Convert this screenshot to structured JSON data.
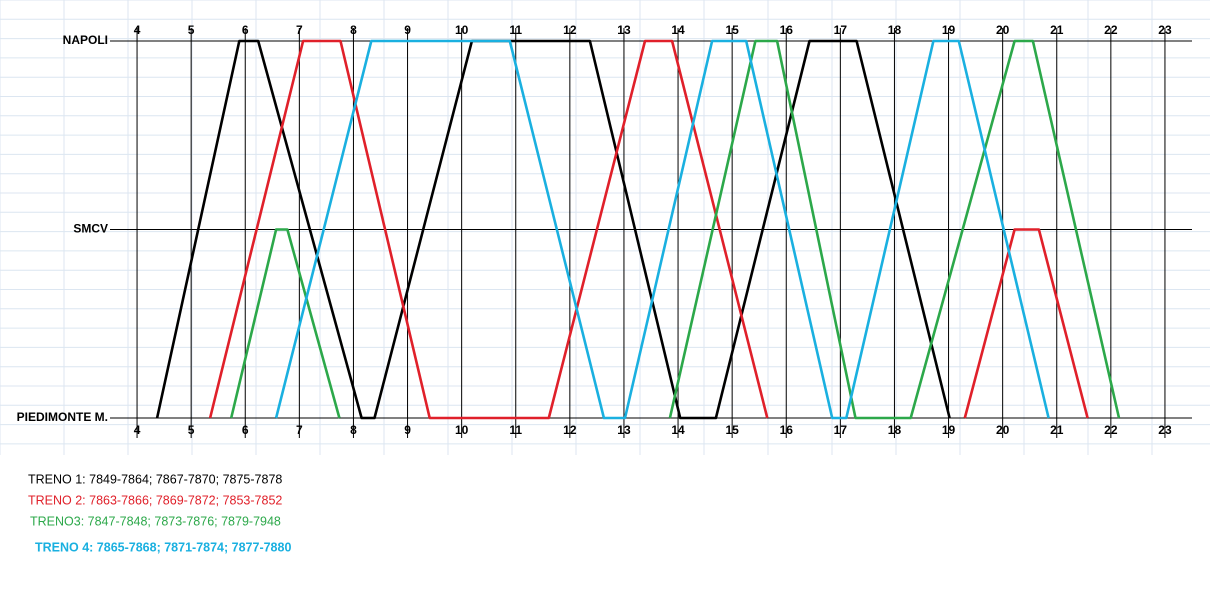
{
  "chart_data": {
    "type": "line",
    "y_categories": [
      "NAPOLI",
      "SMCV",
      "PIEDIMONTE M."
    ],
    "xlim": [
      3.5,
      23.5
    ],
    "xticks": [
      4,
      5,
      6,
      7,
      8,
      9,
      10,
      11,
      12,
      13,
      14,
      15,
      16,
      17,
      18,
      19,
      20,
      21,
      22,
      23
    ],
    "grid": true,
    "series": [
      {
        "name": "TRENO 1: 7849-7864; 7867-7870; 7875-7878",
        "color": "#000000",
        "x": [
          4.37,
          5.89,
          6.24,
          8.15,
          8.39,
          10.19,
          12.37,
          14.04,
          14.7,
          16.43,
          17.3,
          19.02
        ],
        "values": [
          "PIEDIMONTE M.",
          "NAPOLI",
          "NAPOLI",
          "PIEDIMONTE M.",
          "PIEDIMONTE M.",
          "NAPOLI",
          "NAPOLI",
          "PIEDIMONTE M.",
          "PIEDIMONTE M.",
          "NAPOLI",
          "NAPOLI",
          "PIEDIMONTE M."
        ]
      },
      {
        "name": "TRENO 2: 7863-7866; 7869-7872; 7853-7852",
        "color": "#e0202a",
        "x": [
          5.35,
          7.07,
          7.76,
          9.41,
          11.61,
          13.39,
          13.89,
          15.65,
          null,
          19.3,
          20.22,
          20.67,
          21.57
        ],
        "values": [
          "PIEDIMONTE M.",
          "NAPOLI",
          "NAPOLI",
          "PIEDIMONTE M.",
          "PIEDIMONTE M.",
          "NAPOLI",
          "NAPOLI",
          "PIEDIMONTE M.",
          null,
          "PIEDIMONTE M.",
          "SMCV",
          "SMCV",
          "PIEDIMONTE M."
        ]
      },
      {
        "name": "TRENO3: 7847-7848; 7873-7876; 7879-7948",
        "color": "#2ca84a",
        "x": [
          5.74,
          6.57,
          6.78,
          7.74,
          null,
          13.85,
          15.43,
          15.83,
          17.28,
          18.3,
          20.22,
          20.56,
          22.15
        ],
        "values": [
          "PIEDIMONTE M.",
          "SMCV",
          "SMCV",
          "PIEDIMONTE M.",
          null,
          "PIEDIMONTE M.",
          "NAPOLI",
          "NAPOLI",
          "PIEDIMONTE M.",
          "PIEDIMONTE M.",
          "NAPOLI",
          "NAPOLI",
          "PIEDIMONTE M."
        ]
      },
      {
        "name": "TRENO 4: 7865-7868; 7871-7874; 7877-7880",
        "color": "#1ab0e0",
        "x": [
          6.57,
          8.33,
          10.89,
          12.63,
          13.02,
          14.63,
          15.26,
          16.85,
          17.11,
          18.72,
          19.19,
          20.85
        ],
        "values": [
          "PIEDIMONTE M.",
          "NAPOLI",
          "NAPOLI",
          "PIEDIMONTE M.",
          "PIEDIMONTE M.",
          "NAPOLI",
          "NAPOLI",
          "PIEDIMONTE M.",
          "PIEDIMONTE M.",
          "NAPOLI",
          "NAPOLI",
          "PIEDIMONTE M."
        ]
      }
    ]
  }
}
